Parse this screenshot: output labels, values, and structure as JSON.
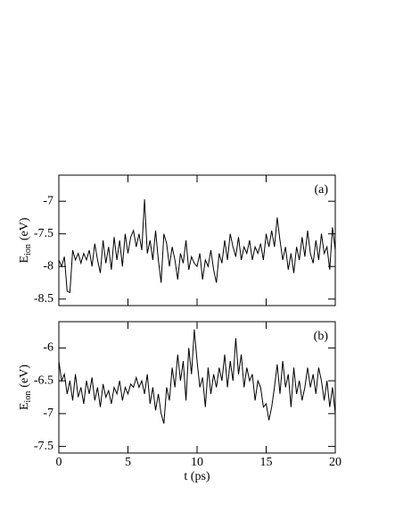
{
  "chart_data": [
    {
      "type": "line",
      "label": "(a)",
      "ylabel": "E",
      "ylabel_sub": "ion",
      "ylabel_unit": "(eV)",
      "xlim": [
        0,
        20
      ],
      "xticks": [
        0,
        5,
        10,
        15,
        20
      ],
      "xtick_labels": false,
      "ylim": [
        -8.6,
        -6.6
      ],
      "yticks": [
        -7,
        -7.5,
        -8,
        -8.5
      ],
      "color": "#000000",
      "x": [
        0,
        0.2,
        0.4,
        0.6,
        0.8,
        1,
        1.2,
        1.4,
        1.6,
        1.8,
        2,
        2.2,
        2.4,
        2.6,
        2.8,
        3,
        3.2,
        3.4,
        3.6,
        3.8,
        4,
        4.2,
        4.4,
        4.6,
        4.8,
        5,
        5.2,
        5.4,
        5.6,
        5.8,
        6,
        6.2,
        6.4,
        6.6,
        6.8,
        7,
        7.2,
        7.4,
        7.6,
        7.8,
        8,
        8.2,
        8.4,
        8.6,
        8.8,
        9,
        9.2,
        9.4,
        9.6,
        9.8,
        10,
        10.2,
        10.4,
        10.6,
        10.8,
        11,
        11.2,
        11.4,
        11.6,
        11.8,
        12,
        12.2,
        12.4,
        12.6,
        12.8,
        13,
        13.2,
        13.4,
        13.6,
        13.8,
        14,
        14.2,
        14.4,
        14.6,
        14.8,
        15,
        15.2,
        15.4,
        15.6,
        15.8,
        16,
        16.2,
        16.4,
        16.6,
        16.8,
        17,
        17.2,
        17.4,
        17.6,
        17.8,
        18,
        18.2,
        18.4,
        18.6,
        18.8,
        19,
        19.2,
        19.4,
        19.6,
        19.8,
        20
      ],
      "values": [
        -7.9,
        -8.0,
        -7.85,
        -8.38,
        -8.4,
        -7.75,
        -7.9,
        -7.8,
        -7.95,
        -7.8,
        -7.9,
        -7.75,
        -8.0,
        -7.65,
        -7.9,
        -8.1,
        -7.6,
        -7.95,
        -7.7,
        -8.05,
        -7.55,
        -7.9,
        -7.6,
        -8.0,
        -7.5,
        -7.8,
        -7.55,
        -7.45,
        -7.7,
        -7.5,
        -7.75,
        -6.97,
        -7.8,
        -7.6,
        -7.9,
        -7.45,
        -7.9,
        -8.25,
        -7.5,
        -7.65,
        -8.0,
        -7.7,
        -7.9,
        -8.2,
        -7.8,
        -7.95,
        -7.6,
        -8.05,
        -7.85,
        -7.95,
        -8.0,
        -7.8,
        -8.2,
        -7.9,
        -8.0,
        -7.75,
        -8.05,
        -8.25,
        -7.8,
        -7.95,
        -7.6,
        -7.9,
        -7.5,
        -7.7,
        -7.85,
        -7.55,
        -7.9,
        -7.7,
        -7.8,
        -7.6,
        -7.9,
        -7.7,
        -7.8,
        -7.65,
        -7.9,
        -7.5,
        -7.7,
        -7.45,
        -7.7,
        -7.25,
        -7.6,
        -7.9,
        -7.7,
        -8.05,
        -7.8,
        -8.1,
        -7.7,
        -7.9,
        -7.55,
        -7.85,
        -7.45,
        -7.8,
        -7.95,
        -7.6,
        -7.9,
        -7.5,
        -7.8,
        -7.7,
        -8.05,
        -7.4,
        -7.75
      ]
    },
    {
      "type": "line",
      "label": "(b)",
      "ylabel": "E",
      "ylabel_sub": "ion",
      "ylabel_unit": "(eV)",
      "xlabel": "t (ps)",
      "xlim": [
        0,
        20
      ],
      "xticks": [
        0,
        5,
        10,
        15,
        20
      ],
      "xtick_labels": true,
      "ylim": [
        -7.6,
        -5.6
      ],
      "yticks": [
        -6,
        -6.5,
        -7,
        -7.5
      ],
      "color": "#000000",
      "x": [
        0,
        0.2,
        0.4,
        0.6,
        0.8,
        1,
        1.2,
        1.4,
        1.6,
        1.8,
        2,
        2.2,
        2.4,
        2.6,
        2.8,
        3,
        3.2,
        3.4,
        3.6,
        3.8,
        4,
        4.2,
        4.4,
        4.6,
        4.8,
        5,
        5.2,
        5.4,
        5.6,
        5.8,
        6,
        6.2,
        6.4,
        6.6,
        6.8,
        7,
        7.2,
        7.4,
        7.6,
        7.8,
        8,
        8.2,
        8.4,
        8.6,
        8.8,
        9,
        9.2,
        9.4,
        9.6,
        9.8,
        10,
        10.2,
        10.4,
        10.6,
        10.8,
        11,
        11.2,
        11.4,
        11.6,
        11.8,
        12,
        12.2,
        12.4,
        12.6,
        12.8,
        13,
        13.2,
        13.4,
        13.6,
        13.8,
        14,
        14.2,
        14.4,
        14.6,
        14.8,
        15,
        15.2,
        15.4,
        15.6,
        15.8,
        16,
        16.2,
        16.4,
        16.6,
        16.8,
        17,
        17.2,
        17.4,
        17.6,
        17.8,
        18,
        18.2,
        18.4,
        18.6,
        18.8,
        19,
        19.2,
        19.4,
        19.6,
        19.8,
        20
      ],
      "values": [
        -6.2,
        -6.5,
        -6.4,
        -6.7,
        -6.5,
        -6.8,
        -6.4,
        -6.75,
        -6.6,
        -6.85,
        -6.5,
        -6.7,
        -6.45,
        -6.8,
        -6.6,
        -6.9,
        -6.55,
        -6.75,
        -6.65,
        -6.85,
        -6.6,
        -6.7,
        -6.5,
        -6.8,
        -6.6,
        -6.7,
        -6.55,
        -6.6,
        -6.45,
        -6.6,
        -6.5,
        -6.7,
        -6.4,
        -6.85,
        -6.6,
        -6.95,
        -6.7,
        -7.0,
        -7.15,
        -6.6,
        -6.8,
        -6.3,
        -6.6,
        -6.1,
        -6.5,
        -6.2,
        -6.8,
        -6.0,
        -6.4,
        -5.72,
        -6.2,
        -6.6,
        -6.45,
        -6.9,
        -6.3,
        -6.7,
        -6.4,
        -6.6,
        -6.3,
        -6.5,
        -6.1,
        -6.6,
        -6.2,
        -6.5,
        -5.85,
        -6.4,
        -6.1,
        -6.6,
        -6.3,
        -6.5,
        -6.4,
        -6.8,
        -6.5,
        -6.6,
        -6.9,
        -6.85,
        -7.1,
        -6.9,
        -6.6,
        -6.25,
        -6.7,
        -6.2,
        -6.6,
        -6.4,
        -6.9,
        -6.3,
        -6.7,
        -6.5,
        -6.8,
        -6.6,
        -6.3,
        -6.6,
        -6.4,
        -6.7,
        -6.3,
        -6.5,
        -6.8,
        -6.5,
        -6.9,
        -6.6,
        -7.0
      ]
    }
  ]
}
